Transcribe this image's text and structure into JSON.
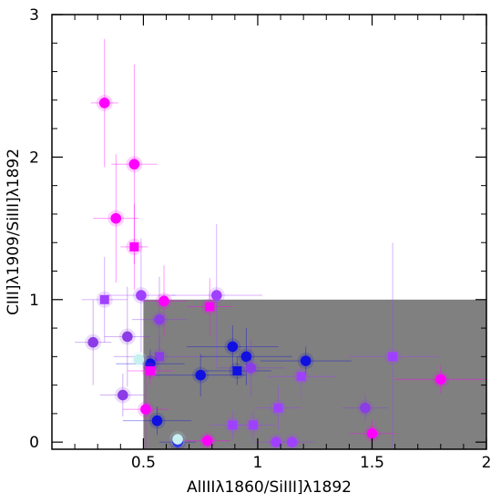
{
  "chart_data": {
    "type": "scatter",
    "title": "",
    "xlabel": "AlIIIλ1860/SiIII]λ1892",
    "ylabel": "CIII]λ1909/SiIII]λ1892",
    "xlim": [
      0.1,
      2.0
    ],
    "ylim": [
      -0.05,
      3.0
    ],
    "x_ticks": [
      0.5,
      1,
      1.5,
      2
    ],
    "x_tick_labels": [
      "0.5",
      "1",
      "1.5",
      "2"
    ],
    "y_ticks": [
      0,
      1,
      2,
      3
    ],
    "y_tick_labels": [
      "0",
      "1",
      "2",
      "3"
    ],
    "grid": false,
    "legend": "none",
    "shaded_region": {
      "x": [
        0.5,
        2.0
      ],
      "y": [
        -0.05,
        1.0
      ],
      "color": "#808080"
    },
    "colors": {
      "magenta": "#ff00ff",
      "purple": "#a040ff",
      "violet": "#8c3ce6",
      "blue": "#1010e0",
      "light": "#c8f0f0"
    },
    "points": [
      {
        "x": 0.33,
        "y": 2.38,
        "shape": "circle",
        "color": "#ff00ff",
        "xerr": 0.06,
        "yerr": 0.45
      },
      {
        "x": 0.46,
        "y": 1.95,
        "shape": "circle",
        "color": "#ff00ff",
        "xerr": 0.1,
        "yerr": 0.7
      },
      {
        "x": 0.38,
        "y": 1.57,
        "shape": "circle",
        "color": "#ff00ff",
        "xerr": 0.1,
        "yerr": 0.45
      },
      {
        "x": 0.46,
        "y": 1.37,
        "shape": "square",
        "color": "#ff00ff",
        "xerr": 0.06,
        "yerr": 0.3
      },
      {
        "x": 0.33,
        "y": 1.0,
        "shape": "square",
        "color": "#a040ff",
        "xerr": 0.1,
        "yerr": 0.3
      },
      {
        "x": 0.49,
        "y": 1.03,
        "shape": "circle",
        "color": "#a040ff",
        "xerr": 0.15,
        "yerr": 0.4
      },
      {
        "x": 0.59,
        "y": 0.99,
        "shape": "circle",
        "color": "#ff00ff",
        "xerr": 0.1,
        "yerr": 0.25
      },
      {
        "x": 0.82,
        "y": 1.03,
        "shape": "circle",
        "color": "#a040ff",
        "xerr": 0.2,
        "yerr": 0.5
      },
      {
        "x": 0.79,
        "y": 0.95,
        "shape": "square",
        "color": "#ff00ff",
        "xerr": 0.1,
        "yerr": 0.2
      },
      {
        "x": 0.57,
        "y": 0.86,
        "shape": "circle",
        "color": "#8c3ce6",
        "xerr": 0.12,
        "yerr": 0.3
      },
      {
        "x": 0.43,
        "y": 0.74,
        "shape": "circle",
        "color": "#8c3ce6",
        "xerr": 0.1,
        "yerr": 0.35
      },
      {
        "x": 0.28,
        "y": 0.7,
        "shape": "circle",
        "color": "#8c3ce6",
        "xerr": 0.08,
        "yerr": 0.3
      },
      {
        "x": 0.57,
        "y": 0.6,
        "shape": "square",
        "color": "#8c3ce6",
        "xerr": 0.2,
        "yerr": 0.15
      },
      {
        "x": 0.53,
        "y": 0.55,
        "shape": "circle",
        "color": "#1010e0",
        "xerr": 0.15,
        "yerr": 0.1
      },
      {
        "x": 0.53,
        "y": 0.5,
        "shape": "square",
        "color": "#ff00ff",
        "xerr": 0.1,
        "yerr": 0.1
      },
      {
        "x": 0.89,
        "y": 0.67,
        "shape": "circle",
        "color": "#1010e0",
        "xerr": 0.2,
        "yerr": 0.15
      },
      {
        "x": 0.95,
        "y": 0.6,
        "shape": "circle",
        "color": "#1010e0",
        "xerr": 0.2,
        "yerr": 0.2
      },
      {
        "x": 0.75,
        "y": 0.47,
        "shape": "circle",
        "color": "#1010e0",
        "xerr": 0.2,
        "yerr": 0.15
      },
      {
        "x": 0.91,
        "y": 0.5,
        "shape": "square",
        "color": "#1010e0",
        "xerr": 0.15,
        "yerr": 0.1
      },
      {
        "x": 0.97,
        "y": 0.52,
        "shape": "circle",
        "color": "#8c3ce6",
        "xerr": 0.15,
        "yerr": 0.2
      },
      {
        "x": 1.21,
        "y": 0.57,
        "shape": "circle",
        "color": "#1010e0",
        "xerr": 0.2,
        "yerr": 0.1
      },
      {
        "x": 1.19,
        "y": 0.46,
        "shape": "square",
        "color": "#a040ff",
        "xerr": 0.15,
        "yerr": 0.15
      },
      {
        "x": 1.59,
        "y": 0.6,
        "shape": "square",
        "color": "#a040ff",
        "xerr": 0.2,
        "yerr": 0.8
      },
      {
        "x": 1.8,
        "y": 0.44,
        "shape": "circle",
        "color": "#ff00ff",
        "xerr": 0.2,
        "yerr": 0.1
      },
      {
        "x": 0.41,
        "y": 0.33,
        "shape": "circle",
        "color": "#8c3ce6",
        "xerr": 0.1,
        "yerr": 0.15
      },
      {
        "x": 0.51,
        "y": 0.23,
        "shape": "circle",
        "color": "#ff00ff",
        "xerr": 0.1,
        "yerr": 0.3
      },
      {
        "x": 0.56,
        "y": 0.15,
        "shape": "circle",
        "color": "#1010e0",
        "xerr": 0.15,
        "yerr": 0.1
      },
      {
        "x": 1.09,
        "y": 0.24,
        "shape": "square",
        "color": "#a040ff",
        "xerr": 0.1,
        "yerr": 0.15
      },
      {
        "x": 1.47,
        "y": 0.24,
        "shape": "circle",
        "color": "#8c3ce6",
        "xerr": 0.1,
        "yerr": 0.1
      },
      {
        "x": 0.89,
        "y": 0.12,
        "shape": "square",
        "color": "#a040ff",
        "xerr": 0.1,
        "yerr": 0.1
      },
      {
        "x": 0.98,
        "y": 0.12,
        "shape": "square",
        "color": "#a040ff",
        "xerr": 0.1,
        "yerr": 0.1
      },
      {
        "x": 1.5,
        "y": 0.06,
        "shape": "circle",
        "color": "#ff00ff",
        "xerr": 0.1,
        "yerr": 0.1
      },
      {
        "x": 0.65,
        "y": 0.0,
        "shape": "circle",
        "color": "#1010e0",
        "xerr": 0.08,
        "yerr": 0.05
      },
      {
        "x": 0.65,
        "y": 0.02,
        "shape": "circle",
        "color": "#c8f0f0",
        "xerr": 0.0,
        "yerr": 0.0
      },
      {
        "x": 0.78,
        "y": 0.01,
        "shape": "circle",
        "color": "#ff00ff",
        "xerr": 0.1,
        "yerr": 0.05
      },
      {
        "x": 1.08,
        "y": 0.0,
        "shape": "circle",
        "color": "#a040ff",
        "xerr": 0.1,
        "yerr": 0.05
      },
      {
        "x": 1.15,
        "y": 0.0,
        "shape": "circle",
        "color": "#a040ff",
        "xerr": 0.1,
        "yerr": 0.05
      },
      {
        "x": 0.48,
        "y": 0.58,
        "shape": "circle",
        "color": "#c8f0f0",
        "xerr": 0.0,
        "yerr": 0.0
      }
    ]
  }
}
